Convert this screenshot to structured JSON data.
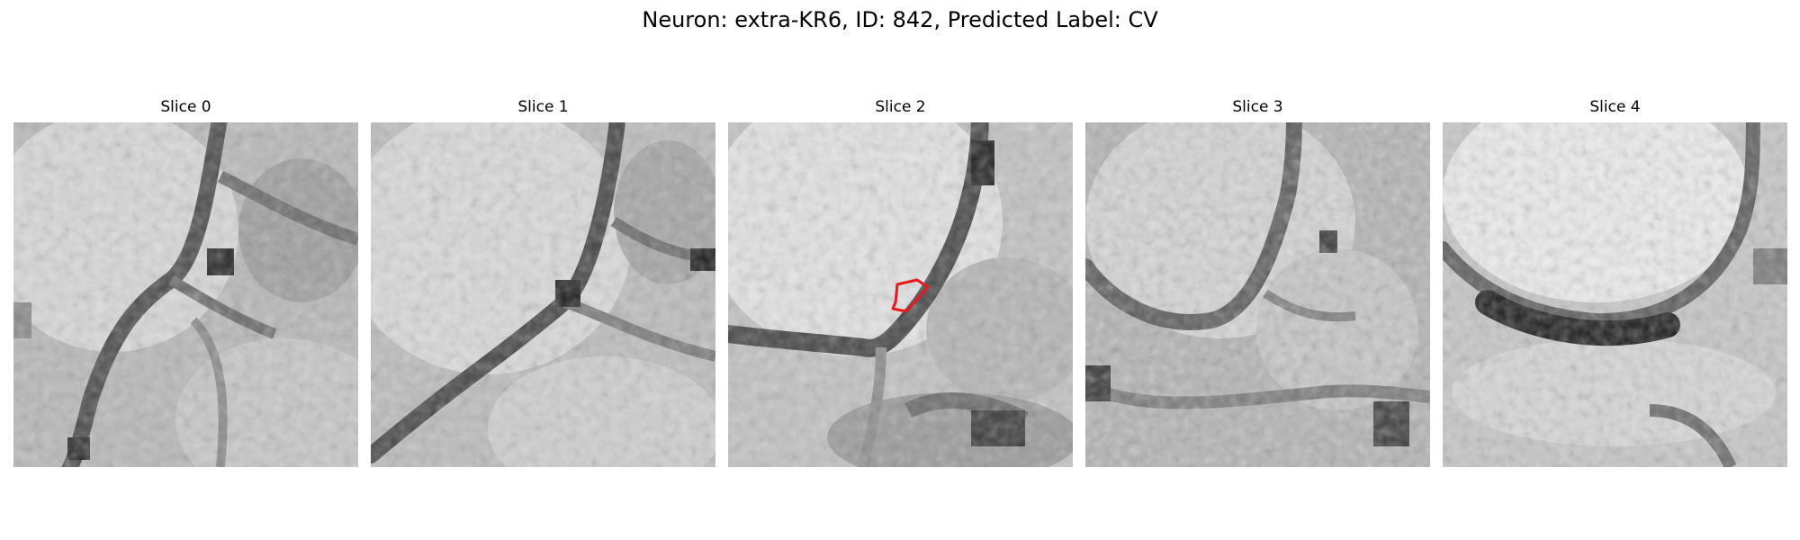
{
  "figure": {
    "title": "Neuron: extra-KR6, ID: 842, Predicted Label: CV"
  },
  "slices": [
    {
      "title": "Slice 0"
    },
    {
      "title": "Slice 1"
    },
    {
      "title": "Slice 2",
      "outline_color": "#e8191c"
    },
    {
      "title": "Slice 3"
    },
    {
      "title": "Slice 4"
    }
  ],
  "colormap": "gray"
}
